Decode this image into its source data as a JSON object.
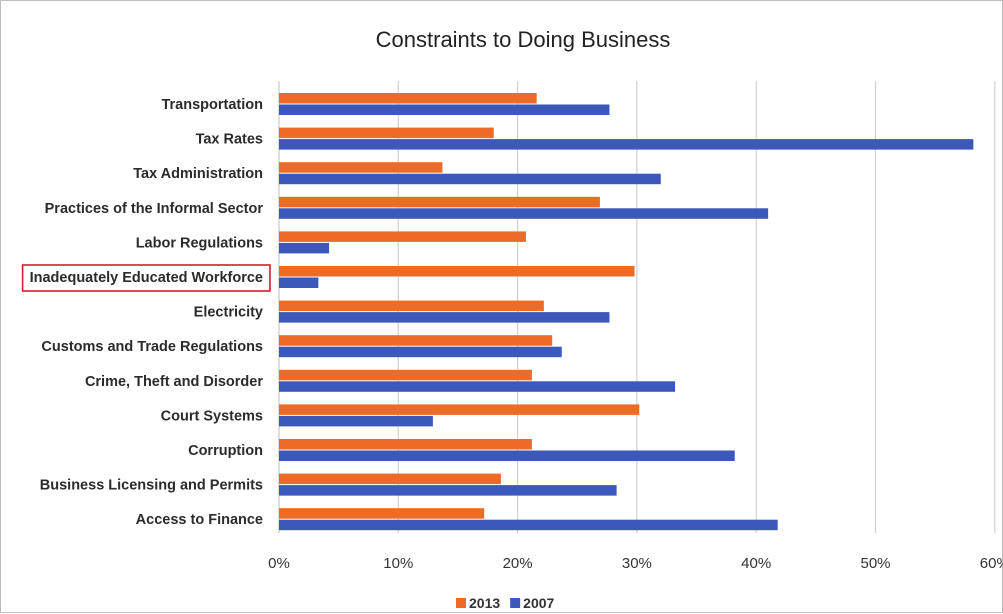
{
  "chart_data": {
    "type": "bar",
    "orientation": "horizontal",
    "title": "Constraints to Doing Business",
    "categories": [
      "Transportation",
      "Tax Rates",
      "Tax Administration",
      "Practices of the Informal Sector",
      "Labor Regulations",
      "Inadequately Educated Workforce",
      "Electricity",
      "Customs and Trade Regulations",
      "Crime, Theft and Disorder",
      "Court Systems",
      "Corruption",
      "Business Licensing and Permits",
      "Access to Finance"
    ],
    "series": [
      {
        "name": "2013",
        "color": "#ed6b24",
        "values": [
          21.6,
          18.0,
          13.7,
          26.9,
          20.7,
          29.8,
          22.2,
          22.9,
          21.2,
          30.2,
          21.2,
          18.6,
          17.2
        ]
      },
      {
        "name": "2007",
        "color": "#3c58bb",
        "values": [
          27.7,
          58.2,
          32.0,
          41.0,
          4.2,
          3.3,
          27.7,
          23.7,
          33.2,
          12.9,
          38.2,
          28.3,
          41.8
        ]
      }
    ],
    "x_ticks": [
      "0%",
      "10%",
      "20%",
      "30%",
      "40%",
      "50%",
      "60%"
    ],
    "xlim": [
      0,
      60
    ],
    "x_unit": "%",
    "grid": "vertical",
    "legend_position": "bottom",
    "highlighted_category": "Inadequately Educated Workforce",
    "highlight_color": "#d0202a"
  }
}
